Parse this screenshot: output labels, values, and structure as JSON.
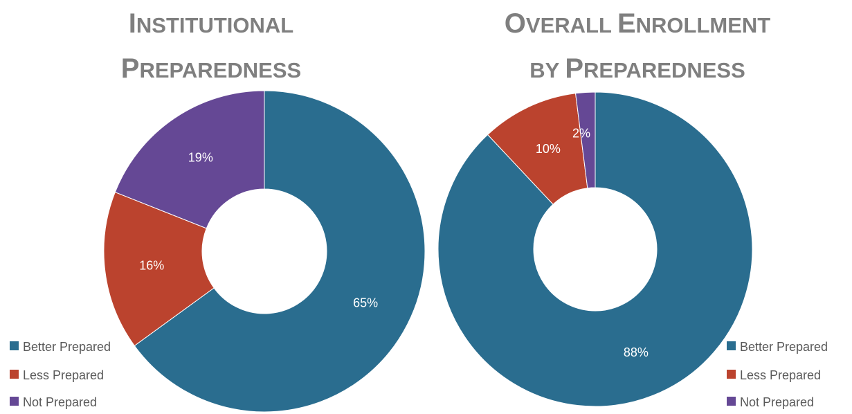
{
  "chart_data": [
    {
      "type": "pie",
      "title": "Institutional Preparedness",
      "title_lines": [
        [
          [
            "I",
            "big"
          ],
          [
            "NSTITUTIONAL",
            "small"
          ]
        ],
        [
          [
            "P",
            "big"
          ],
          [
            "REPAREDNESS",
            "small"
          ]
        ]
      ],
      "categories": [
        "Better Prepared",
        "Less Prepared",
        "Not Prepared"
      ],
      "values": [
        65,
        16,
        19
      ],
      "labels": [
        "65%",
        "16%",
        "19%"
      ],
      "legend_position": "bottom-left"
    },
    {
      "type": "pie",
      "title": "Overall Enrollment by Preparedness",
      "title_lines": [
        [
          [
            "O",
            "big"
          ],
          [
            "VERALL ",
            "small"
          ],
          [
            "E",
            "big"
          ],
          [
            "NROLLMENT",
            "small"
          ]
        ],
        [
          [
            "BY ",
            "small"
          ],
          [
            "P",
            "big"
          ],
          [
            "REPAREDNESS",
            "small"
          ]
        ]
      ],
      "categories": [
        "Better Prepared",
        "Less Prepared",
        "Not Prepared"
      ],
      "values": [
        88,
        10,
        2
      ],
      "labels": [
        "88%",
        "10%",
        "2%"
      ],
      "legend_position": "bottom-right"
    }
  ],
  "colors": [
    "#2a6d8f",
    "#bb432e",
    "#654895"
  ]
}
